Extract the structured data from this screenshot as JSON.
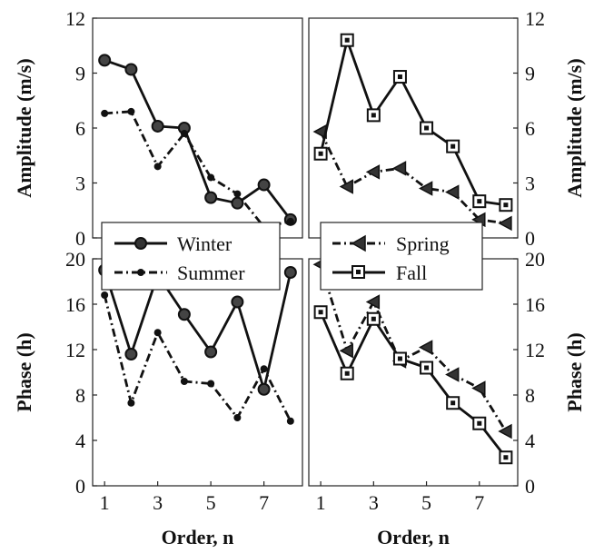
{
  "chart_data": [
    {
      "panel": "top-left",
      "type": "line",
      "ylabel": "Amplitude (m/s)",
      "xlim": [
        1,
        8
      ],
      "ylim": [
        0,
        12
      ],
      "yticks": [
        "0",
        "3",
        "6",
        "9",
        "12"
      ],
      "series": [
        {
          "name": "Winter",
          "x": [
            1,
            2,
            3,
            4,
            5,
            6,
            7,
            8
          ],
          "values": [
            9.7,
            9.2,
            6.1,
            6.0,
            2.2,
            1.9,
            2.9,
            1.0
          ]
        },
        {
          "name": "Summer",
          "x": [
            1,
            2,
            3,
            4,
            5,
            6,
            7,
            8
          ],
          "values": [
            6.8,
            6.9,
            3.9,
            5.7,
            3.3,
            2.4,
            0.6,
            0.9
          ]
        }
      ]
    },
    {
      "panel": "top-right",
      "type": "line",
      "ylabel": "Amplitude (m/s)",
      "xlim": [
        1,
        8
      ],
      "ylim": [
        0,
        12
      ],
      "yticks": [
        "0",
        "3",
        "6",
        "9",
        "12"
      ],
      "series": [
        {
          "name": "Spring",
          "x": [
            1,
            2,
            3,
            4,
            5,
            6,
            7,
            8
          ],
          "values": [
            5.8,
            2.8,
            3.6,
            3.8,
            2.7,
            2.5,
            1.0,
            0.8
          ]
        },
        {
          "name": "Fall",
          "x": [
            1,
            2,
            3,
            4,
            5,
            6,
            7,
            8
          ],
          "values": [
            4.6,
            10.8,
            6.7,
            8.8,
            6.0,
            5.0,
            2.0,
            1.8
          ]
        }
      ]
    },
    {
      "panel": "bottom-left",
      "type": "line",
      "xlabel": "Order, n",
      "ylabel": "Phase (h)",
      "xlim": [
        1,
        8
      ],
      "ylim": [
        0,
        20
      ],
      "xticks": [
        "1",
        "3",
        "5",
        "7"
      ],
      "yticks": [
        "0",
        "4",
        "8",
        "12",
        "16",
        "20"
      ],
      "series": [
        {
          "name": "Winter",
          "x": [
            1,
            2,
            3,
            4,
            5,
            6,
            7,
            8
          ],
          "values": [
            19.0,
            11.6,
            18.6,
            15.1,
            11.8,
            16.2,
            8.5,
            18.8
          ]
        },
        {
          "name": "Summer",
          "x": [
            1,
            2,
            3,
            4,
            5,
            6,
            7,
            8
          ],
          "values": [
            16.8,
            7.3,
            13.5,
            9.2,
            9.0,
            6.0,
            10.3,
            5.7
          ]
        }
      ]
    },
    {
      "panel": "bottom-right",
      "type": "line",
      "xlabel": "Order, n",
      "ylabel": "Phase (h)",
      "xlim": [
        1,
        8
      ],
      "ylim": [
        0,
        20
      ],
      "xticks": [
        "1",
        "3",
        "5",
        "7"
      ],
      "yticks": [
        "0",
        "4",
        "8",
        "12",
        "16",
        "20"
      ],
      "series": [
        {
          "name": "Spring",
          "x": [
            1,
            2,
            3,
            4,
            5,
            6,
            7,
            8
          ],
          "values": [
            19.5,
            11.9,
            16.2,
            11.0,
            12.2,
            9.8,
            8.6,
            4.8
          ]
        },
        {
          "name": "Fall",
          "x": [
            1,
            2,
            3,
            4,
            5,
            6,
            7,
            8
          ],
          "values": [
            15.3,
            9.9,
            14.7,
            11.2,
            10.4,
            7.3,
            5.5,
            2.5
          ]
        }
      ]
    }
  ],
  "legend_left": [
    {
      "label": "Winter",
      "marker": "circle",
      "style": "solid"
    },
    {
      "label": "Summer",
      "marker": "dot",
      "style": "dashdot"
    }
  ],
  "legend_right": [
    {
      "label": "Spring",
      "marker": "triangle-left",
      "style": "dashdot"
    },
    {
      "label": "Fall",
      "marker": "square",
      "style": "solid"
    }
  ],
  "series_styles": {
    "Winter": {
      "marker": "circle",
      "dash": "",
      "color": "#111111"
    },
    "Summer": {
      "marker": "dot",
      "dash": "9 4 2 4",
      "color": "#111111"
    },
    "Spring": {
      "marker": "triangle-left",
      "dash": "9 4 2 4",
      "color": "#111111"
    },
    "Fall": {
      "marker": "square",
      "dash": "",
      "color": "#111111"
    }
  }
}
